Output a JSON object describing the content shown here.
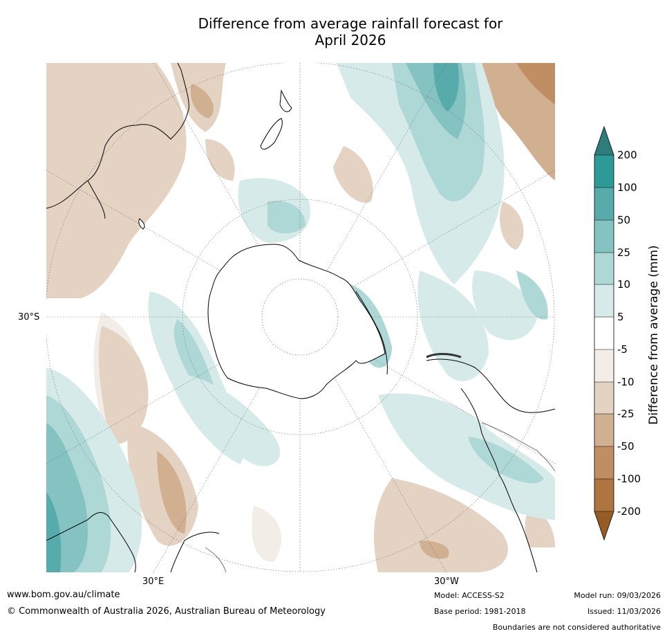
{
  "title": {
    "line1": "Difference from average rainfall forecast for",
    "line2": "April 2026"
  },
  "map": {
    "projection": "south-polar-stereographic",
    "latitude_label": "30°S",
    "longitude_labels": {
      "left": "30°E",
      "right": "30°W"
    }
  },
  "colorbar": {
    "label": "Difference from average (mm)",
    "ticks": [
      "200",
      "100",
      "50",
      "25",
      "10",
      "5",
      "-5",
      "-10",
      "-25",
      "-50",
      "-100",
      "-200"
    ],
    "colors": {
      "above_200": "#2e7d7b",
      "100_200": "#2e9a98",
      "50_100": "#58abab",
      "25_50": "#84c3c1",
      "10_25": "#aed8d6",
      "5_10": "#d6ebe9",
      "neutral": "#ffffff",
      "m5_m10": "#f2ede6",
      "m10_m25": "#e4d2c2",
      "m25_m50": "#d0b090",
      "m50_m100": "#c08e62",
      "m100_m200": "#ae7540",
      "below_m200": "#955d25"
    }
  },
  "footer": {
    "website": "www.bom.gov.au/climate",
    "copyright": "© Commonwealth of Australia 2026, Australian Bureau of Meteorology",
    "model": "Model: ACCESS-S2",
    "base_period": "Base period: 1981-2018",
    "model_run": "Model run: 09/03/2026",
    "issued": "Issued: 11/03/2026",
    "disclaimer": "Boundaries are not considered authoritative"
  }
}
